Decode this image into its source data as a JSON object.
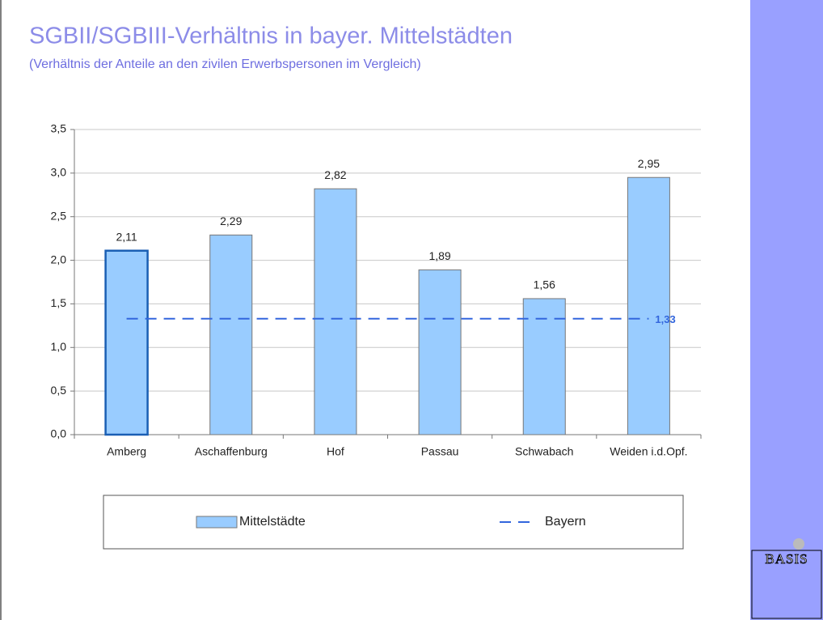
{
  "chart_data": {
    "type": "bar",
    "title": "SGBII/SGBIII-Verhältnis in bayer. Mittelstädten",
    "subtitle": "(Verhältnis der Anteile an den zivilen Erwerbspersonen im Vergleich)",
    "categories": [
      "Amberg",
      "Aschaffenburg",
      "Hof",
      "Passau",
      "Schwabach",
      "Weiden i.d.Opf."
    ],
    "series": [
      {
        "name": "Mittelstädte",
        "type": "bar",
        "color": "#99ccff",
        "values": [
          2.11,
          2.29,
          2.82,
          1.89,
          1.56,
          2.95
        ],
        "value_labels": [
          "2,11",
          "2,29",
          "2,82",
          "1,89",
          "1,56",
          "2,95"
        ]
      },
      {
        "name": "Bayern",
        "type": "line",
        "dashed": true,
        "color": "#3366dd",
        "values": [
          1.33,
          1.33,
          1.33,
          1.33,
          1.33,
          1.33
        ],
        "value_labels": [
          null,
          null,
          null,
          null,
          null,
          "1,33"
        ]
      }
    ],
    "highlight_category": "Amberg",
    "highlight_color": "#1a5fb4",
    "ylim": [
      0,
      3.5
    ],
    "yticks": [
      {
        "value": 0,
        "label": "0,0"
      },
      {
        "value": 0.5,
        "label": "0,5"
      },
      {
        "value": 1,
        "label": "1,0"
      },
      {
        "value": 1.5,
        "label": "1,5"
      },
      {
        "value": 2,
        "label": "2,0"
      },
      {
        "value": 2.5,
        "label": "2,5"
      },
      {
        "value": 3,
        "label": "3,0"
      },
      {
        "value": 3.5,
        "label": "3,5"
      }
    ],
    "grid": true,
    "legend": "bottom",
    "logo": "BASIS"
  }
}
